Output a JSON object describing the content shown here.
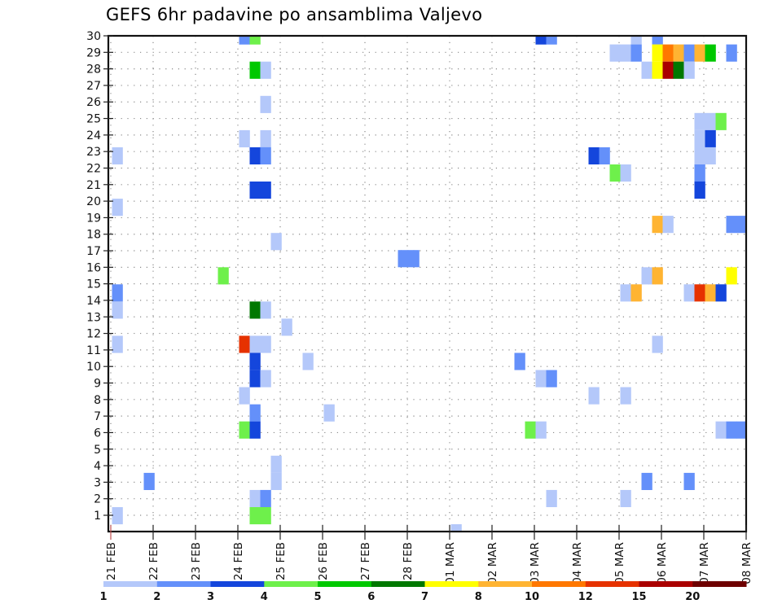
{
  "chart_data": {
    "type": "heatmap",
    "title": "GEFS 6hr padavine po ansamblima Valjevo",
    "xlabel": "",
    "ylabel": "",
    "x_step_hours": 6,
    "x_tick_labels": [
      "21 FEB",
      "22 FEB",
      "23 FEB",
      "24 FEB",
      "25 FEB",
      "26 FEB",
      "27 FEB",
      "28 FEB",
      "01 MAR",
      "02 MAR",
      "03 MAR",
      "04 MAR",
      "05 MAR",
      "06 MAR",
      "07 MAR",
      "08 MAR"
    ],
    "y_tick_labels": [
      "1",
      "2",
      "3",
      "4",
      "5",
      "6",
      "7",
      "8",
      "9",
      "10",
      "11",
      "12",
      "13",
      "14",
      "15",
      "16",
      "17",
      "18",
      "19",
      "20",
      "21",
      "22",
      "23",
      "24",
      "25",
      "26",
      "27",
      "28",
      "29",
      "30"
    ],
    "grid": true,
    "colorbar": {
      "labels": [
        "1",
        "2",
        "3",
        "4",
        "5",
        "6",
        "7",
        "8",
        "10",
        "12",
        "15",
        "20"
      ],
      "colors": [
        "#b4c8fa",
        "#6490fa",
        "#1446dc",
        "#6ef04b",
        "#00c800",
        "#007800",
        "#ffff00",
        "#ffb432",
        "#ff7800",
        "#e63200",
        "#aa0000",
        "#6e0000"
      ],
      "placement": "bottom"
    },
    "cells_format": "[member, six_hour_step_index_from_21FEB_00, color_class_index]",
    "cells": [
      [
        29,
        12,
        1
      ],
      [
        29,
        13,
        3
      ],
      [
        29,
        40,
        2
      ],
      [
        29,
        41,
        1
      ],
      [
        29,
        49,
        0
      ],
      [
        29,
        51,
        1
      ],
      [
        28,
        47,
        0
      ],
      [
        28,
        48,
        0
      ],
      [
        28,
        49,
        1
      ],
      [
        28,
        51,
        6
      ],
      [
        28,
        52,
        8
      ],
      [
        28,
        53,
        7
      ],
      [
        28,
        54,
        1
      ],
      [
        28,
        55,
        7
      ],
      [
        28,
        56,
        4
      ],
      [
        28,
        58,
        1
      ],
      [
        27,
        13,
        4
      ],
      [
        27,
        14,
        0
      ],
      [
        27,
        50,
        0
      ],
      [
        27,
        51,
        6
      ],
      [
        27,
        52,
        10
      ],
      [
        27,
        53,
        5
      ],
      [
        27,
        54,
        0
      ],
      [
        25,
        14,
        0
      ],
      [
        24,
        55,
        0
      ],
      [
        24,
        56,
        0
      ],
      [
        24,
        57,
        3
      ],
      [
        23,
        12,
        0
      ],
      [
        23,
        14,
        0
      ],
      [
        23,
        55,
        0
      ],
      [
        23,
        56,
        2
      ],
      [
        22,
        0,
        0
      ],
      [
        22,
        13,
        2
      ],
      [
        22,
        14,
        1
      ],
      [
        22,
        45,
        2
      ],
      [
        22,
        46,
        1
      ],
      [
        22,
        55,
        0
      ],
      [
        22,
        56,
        0
      ],
      [
        21,
        47,
        3
      ],
      [
        21,
        48,
        0
      ],
      [
        21,
        55,
        1
      ],
      [
        20,
        13,
        2
      ],
      [
        20,
        14,
        2
      ],
      [
        20,
        55,
        2
      ],
      [
        19,
        0,
        0
      ],
      [
        18,
        51,
        7
      ],
      [
        18,
        52,
        0
      ],
      [
        18,
        58,
        1
      ],
      [
        18,
        59,
        1
      ],
      [
        17,
        15,
        0
      ],
      [
        16,
        27,
        1
      ],
      [
        16,
        28,
        1
      ],
      [
        15,
        10,
        3
      ],
      [
        15,
        50,
        0
      ],
      [
        15,
        51,
        7
      ],
      [
        15,
        58,
        6
      ],
      [
        14,
        0,
        1
      ],
      [
        14,
        48,
        0
      ],
      [
        14,
        49,
        7
      ],
      [
        14,
        54,
        0
      ],
      [
        14,
        55,
        9
      ],
      [
        14,
        56,
        7
      ],
      [
        14,
        57,
        2
      ],
      [
        13,
        0,
        0
      ],
      [
        13,
        13,
        5
      ],
      [
        13,
        14,
        0
      ],
      [
        12,
        16,
        0
      ],
      [
        11,
        0,
        0
      ],
      [
        11,
        12,
        9
      ],
      [
        11,
        13,
        0
      ],
      [
        11,
        14,
        0
      ],
      [
        11,
        51,
        0
      ],
      [
        10,
        13,
        2
      ],
      [
        10,
        18,
        0
      ],
      [
        10,
        38,
        1
      ],
      [
        9,
        13,
        2
      ],
      [
        9,
        14,
        0
      ],
      [
        9,
        40,
        0
      ],
      [
        9,
        41,
        1
      ],
      [
        8,
        12,
        0
      ],
      [
        8,
        45,
        0
      ],
      [
        8,
        48,
        0
      ],
      [
        7,
        13,
        1
      ],
      [
        7,
        20,
        0
      ],
      [
        6,
        12,
        3
      ],
      [
        6,
        13,
        2
      ],
      [
        6,
        39,
        3
      ],
      [
        6,
        40,
        0
      ],
      [
        6,
        57,
        0
      ],
      [
        6,
        58,
        1
      ],
      [
        6,
        59,
        1
      ],
      [
        4,
        15,
        0
      ],
      [
        3,
        3,
        1
      ],
      [
        3,
        15,
        0
      ],
      [
        3,
        50,
        1
      ],
      [
        3,
        54,
        1
      ],
      [
        2,
        13,
        0
      ],
      [
        2,
        14,
        1
      ],
      [
        2,
        41,
        0
      ],
      [
        2,
        48,
        0
      ],
      [
        1,
        0,
        0
      ],
      [
        1,
        13,
        3
      ],
      [
        1,
        14,
        3
      ],
      [
        0,
        32,
        0
      ]
    ]
  }
}
